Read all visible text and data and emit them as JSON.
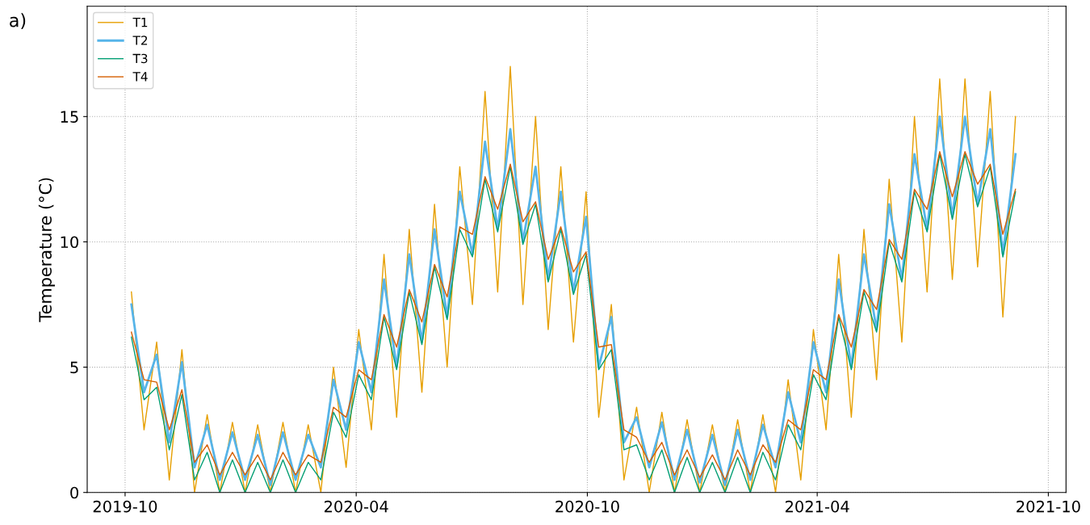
{
  "chart_data": {
    "type": "line",
    "ylabel": "Temperature (°C)",
    "annotations": [
      "a)"
    ],
    "x": [
      "2019-10-06",
      "2019-10-16",
      "2019-10-26",
      "2019-11-05",
      "2019-11-15",
      "2019-11-25",
      "2019-12-05",
      "2019-12-15",
      "2019-12-25",
      "2020-01-04",
      "2020-01-14",
      "2020-01-24",
      "2020-02-03",
      "2020-02-13",
      "2020-02-23",
      "2020-03-04",
      "2020-03-14",
      "2020-03-24",
      "2020-04-03",
      "2020-04-13",
      "2020-04-23",
      "2020-05-03",
      "2020-05-13",
      "2020-05-23",
      "2020-06-02",
      "2020-06-12",
      "2020-06-22",
      "2020-07-02",
      "2020-07-12",
      "2020-07-22",
      "2020-08-01",
      "2020-08-11",
      "2020-08-21",
      "2020-08-31",
      "2020-09-10",
      "2020-09-20",
      "2020-09-30",
      "2020-10-10",
      "2020-10-20",
      "2020-10-30",
      "2020-11-09",
      "2020-11-19",
      "2020-11-29",
      "2020-12-09",
      "2020-12-19",
      "2020-12-29",
      "2021-01-08",
      "2021-01-18",
      "2021-01-28",
      "2021-02-07",
      "2021-02-17",
      "2021-02-27",
      "2021-03-09",
      "2021-03-19",
      "2021-03-29",
      "2021-04-08",
      "2021-04-18",
      "2021-04-28",
      "2021-05-08",
      "2021-05-18",
      "2021-05-28",
      "2021-06-07",
      "2021-06-17",
      "2021-06-27",
      "2021-07-07",
      "2021-07-17",
      "2021-07-27",
      "2021-08-06",
      "2021-08-16",
      "2021-08-26",
      "2021-09-05"
    ],
    "series": [
      {
        "name": "T1",
        "color": "#e69f00",
        "values": [
          8.0,
          2.5,
          6.0,
          0.5,
          5.7,
          0.0,
          3.1,
          0,
          2.8,
          0,
          2.7,
          0,
          2.8,
          0,
          2.7,
          0,
          5.0,
          1.0,
          6.5,
          2.5,
          9.5,
          3.0,
          10.5,
          4.0,
          11.5,
          5.0,
          13.0,
          7.5,
          16.0,
          8.0,
          17.0,
          7.5,
          15.0,
          6.5,
          13.0,
          6.0,
          12.0,
          3.0,
          7.5,
          0.5,
          3.4,
          0,
          3.2,
          0,
          2.9,
          0,
          2.7,
          0,
          2.9,
          0,
          3.1,
          0,
          4.5,
          0.5,
          6.5,
          2.5,
          9.5,
          3.0,
          10.5,
          4.5,
          12.5,
          6.0,
          15.0,
          8.0,
          16.5,
          8.5,
          16.5,
          9.0,
          16.0,
          7.0,
          15.0
        ]
      },
      {
        "name": "T2",
        "color": "#56b4e9",
        "values": [
          7.5,
          4.0,
          5.5,
          2.0,
          5.2,
          1.0,
          2.7,
          0.5,
          2.4,
          0.5,
          2.3,
          0.3,
          2.4,
          0.5,
          2.3,
          1.0,
          4.5,
          2.5,
          6.0,
          4.0,
          8.5,
          5.0,
          9.5,
          6.0,
          10.5,
          7.0,
          12.0,
          9.5,
          14.0,
          10.5,
          14.5,
          10.0,
          13.0,
          8.5,
          12.0,
          8.0,
          11.0,
          5.0,
          7.0,
          2.0,
          3.0,
          1.0,
          2.8,
          0.5,
          2.5,
          0.4,
          2.3,
          0.3,
          2.5,
          0.5,
          2.7,
          1.0,
          4.0,
          2.0,
          6.0,
          4.0,
          8.5,
          5.0,
          9.5,
          6.5,
          11.5,
          8.5,
          13.5,
          10.5,
          15.0,
          11.0,
          15.0,
          11.5,
          14.5,
          9.5,
          13.5
        ]
      },
      {
        "name": "T3",
        "color": "#009e73",
        "values": [
          6.2,
          3.7,
          4.2,
          1.7,
          3.9,
          0.5,
          1.6,
          0,
          1.3,
          0,
          1.2,
          0,
          1.3,
          0,
          1.2,
          0.5,
          3.2,
          2.2,
          4.7,
          3.7,
          7.0,
          4.9,
          8.0,
          5.9,
          9.0,
          6.9,
          10.5,
          9.4,
          12.5,
          10.4,
          13.0,
          9.9,
          11.5,
          8.4,
          10.5,
          7.9,
          9.5,
          4.9,
          5.7,
          1.7,
          1.9,
          0.5,
          1.7,
          0,
          1.4,
          0,
          1.2,
          0,
          1.4,
          0,
          1.6,
          0.5,
          2.7,
          1.7,
          4.7,
          3.7,
          7.0,
          4.9,
          8.0,
          6.4,
          10.0,
          8.4,
          12.0,
          10.4,
          13.5,
          10.9,
          13.5,
          11.4,
          13.0,
          9.4,
          12.0
        ]
      },
      {
        "name": "T4",
        "color": "#d55e00",
        "values": [
          6.4,
          4.5,
          4.4,
          2.5,
          4.1,
          1.2,
          1.9,
          0.7,
          1.6,
          0.7,
          1.5,
          0.5,
          1.6,
          0.7,
          1.5,
          1.2,
          3.4,
          3.0,
          4.9,
          4.5,
          7.1,
          5.8,
          8.1,
          6.8,
          9.1,
          7.8,
          10.6,
          10.3,
          12.6,
          11.3,
          13.1,
          10.8,
          11.6,
          9.3,
          10.6,
          8.8,
          9.6,
          5.8,
          5.9,
          2.5,
          2.2,
          1.2,
          2.0,
          0.7,
          1.7,
          0.6,
          1.5,
          0.5,
          1.7,
          0.7,
          1.9,
          1.2,
          2.9,
          2.5,
          4.9,
          4.5,
          7.1,
          5.8,
          8.1,
          7.3,
          10.1,
          9.3,
          12.1,
          11.3,
          13.6,
          11.8,
          13.6,
          12.3,
          13.1,
          10.3,
          12.1
        ]
      }
    ],
    "xlim": [
      "2019-09-01",
      "2021-10-15"
    ],
    "xticks": [
      {
        "value": "2019-10-01",
        "label": "2019-10"
      },
      {
        "value": "2020-04-01",
        "label": "2020-04"
      },
      {
        "value": "2020-10-01",
        "label": "2020-10"
      },
      {
        "value": "2021-04-01",
        "label": "2021-04"
      },
      {
        "value": "2021-10-01",
        "label": "2021-10"
      }
    ],
    "ylim": [
      0,
      19.4
    ],
    "yticks": [
      0,
      5,
      10,
      15
    ],
    "grid": true,
    "legend": "top left"
  }
}
